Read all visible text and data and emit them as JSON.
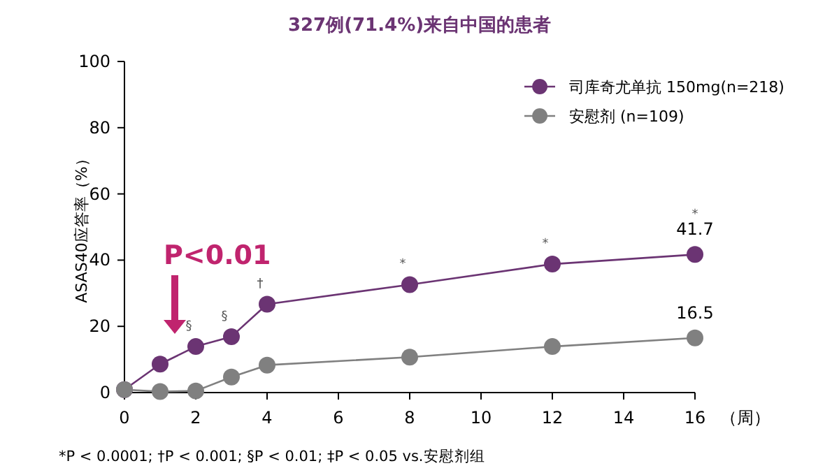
{
  "chart_data": {
    "type": "line",
    "title": "327例(71.4%)来自中国的患者",
    "xlabel": "（周）",
    "ylabel": "ASAS40应答率（%）",
    "x": [
      0,
      1,
      2,
      3,
      4,
      8,
      12,
      16
    ],
    "series": [
      {
        "name": "司库奇尤单抗 150mg(n=218)",
        "color": "#6b3473",
        "values": [
          0.9,
          8.6,
          13.9,
          16.9,
          26.7,
          32.6,
          38.8,
          41.7
        ],
        "value_labels": [
          null,
          null,
          null,
          null,
          null,
          null,
          null,
          "41.7"
        ]
      },
      {
        "name": "安慰剂 (n=109)",
        "color": "#808080",
        "values": [
          0.9,
          0.3,
          0.5,
          4.7,
          8.3,
          10.7,
          13.9,
          16.5
        ],
        "value_labels": [
          null,
          null,
          null,
          null,
          null,
          null,
          null,
          "16.5"
        ]
      }
    ],
    "xlim": [
      0,
      16
    ],
    "xticks": [
      0,
      2,
      4,
      6,
      8,
      10,
      12,
      14,
      16
    ],
    "ylim": [
      0,
      100
    ],
    "yticks": [
      0,
      20,
      40,
      60,
      80,
      100
    ],
    "grid": false,
    "legend": "top right",
    "marker": "circle",
    "line_style": "solid",
    "annotations": [
      {
        "text": "P<0.01",
        "x": 2,
        "y": 13.9
      },
      {
        "text": "§",
        "x": 2,
        "y": 13.9
      },
      {
        "text": "§",
        "x": 3,
        "y": 16.9
      },
      {
        "text": "†",
        "x": 4,
        "y": 26.7
      },
      {
        "text": "*",
        "x": 8,
        "y": 32.6
      },
      {
        "text": "*",
        "x": 12,
        "y": 38.8
      },
      {
        "text": "*",
        "x": 16,
        "y": 41.7
      },
      "*P < 0.0001; †P < 0.001; §P < 0.01; ‡P < 0.05 vs.安慰剂组"
    ]
  }
}
